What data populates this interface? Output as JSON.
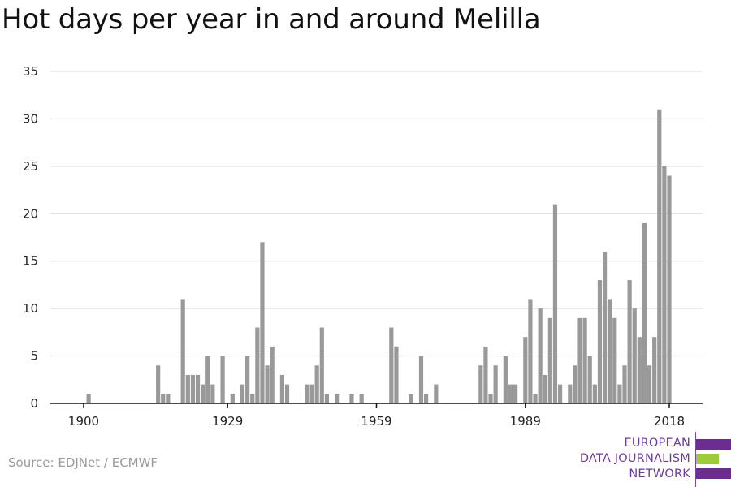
{
  "header": {
    "title": "Hot days per year in and around Melilla"
  },
  "footer": {
    "source": "Source: EDJNet / ECMWF"
  },
  "logo": {
    "line1": "EUROPEAN",
    "line2": "DATA JOURNALISM",
    "line3": "NETWORK",
    "colors": {
      "purple": "#6b2d8f",
      "green": "#9ccc3a"
    }
  },
  "chart_data": {
    "type": "bar",
    "title": "Hot days per year in and around Melilla",
    "xlabel": "",
    "ylabel": "",
    "ylim": [
      0,
      35
    ],
    "yticks": [
      0,
      5,
      10,
      15,
      20,
      25,
      30,
      35
    ],
    "xticks": [
      1900,
      1929,
      1959,
      1989,
      2018
    ],
    "xlim": [
      1896,
      2024
    ],
    "grid": true,
    "bar_color": "#999999",
    "series": [
      {
        "x": [
          1901,
          1915,
          1916,
          1917,
          1920,
          1921,
          1922,
          1923,
          1924,
          1925,
          1926,
          1928,
          1930,
          1932,
          1933,
          1934,
          1935,
          1936,
          1937,
          1938,
          1940,
          1941,
          1945,
          1946,
          1947,
          1948,
          1949,
          1951,
          1954,
          1956,
          1962,
          1963,
          1966,
          1968,
          1969,
          1971,
          1980,
          1981,
          1982,
          1983,
          1985,
          1986,
          1987,
          1989,
          1990,
          1991,
          1992,
          1993,
          1994,
          1995,
          1996,
          1998,
          1999,
          2000,
          2001,
          2002,
          2003,
          2004,
          2005,
          2006,
          2007,
          2008,
          2009,
          2010,
          2011,
          2012,
          2013,
          2014,
          2015,
          2016,
          2017,
          2018
        ],
        "values": [
          1,
          4,
          1,
          1,
          11,
          3,
          3,
          3,
          2,
          5,
          2,
          5,
          1,
          2,
          5,
          1,
          8,
          17,
          4,
          6,
          3,
          2,
          2,
          2,
          4,
          8,
          1,
          1,
          1,
          1,
          8,
          6,
          1,
          5,
          1,
          2,
          4,
          6,
          1,
          4,
          5,
          2,
          2,
          7,
          11,
          1,
          10,
          3,
          9,
          21,
          2,
          2,
          4,
          9,
          9,
          5,
          2,
          13,
          16,
          11,
          9,
          2,
          4,
          13,
          10,
          7,
          19,
          4,
          7,
          31,
          25,
          24
        ]
      }
    ]
  }
}
